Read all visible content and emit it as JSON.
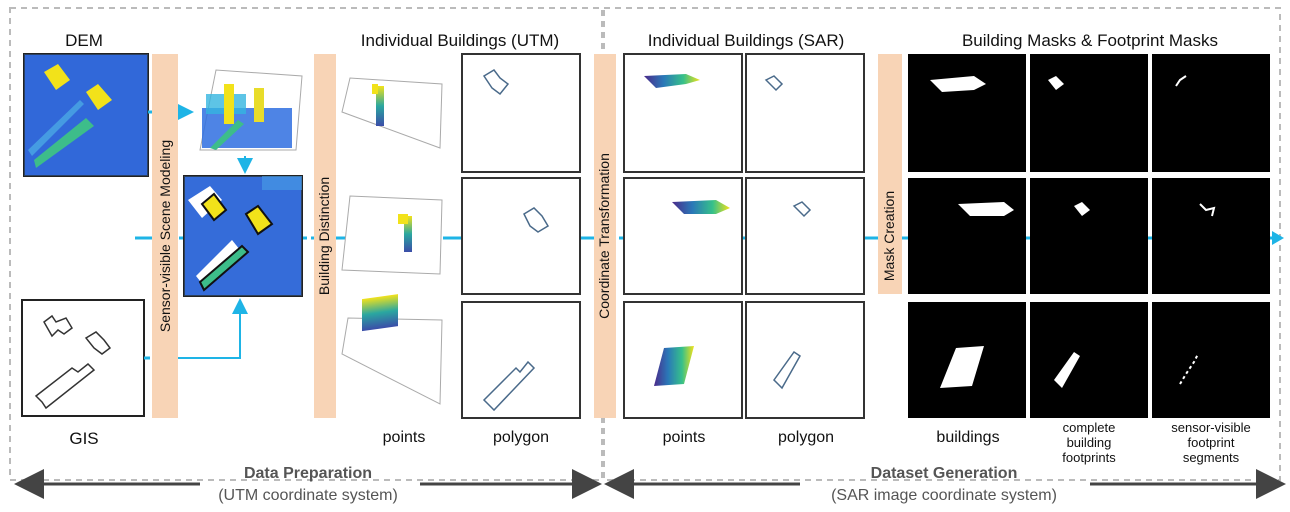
{
  "labels": {
    "dem": "DEM",
    "gis": "GIS",
    "scene_modeling": "Sensor-visible Scene Modeling",
    "building_distinction": "Building Distinction",
    "coordinate_transformation": "Coordinate Transformation",
    "mask_creation": "Mask Creation",
    "individual_utm": "Individual Buildings (UTM)",
    "individual_sar": "Individual Buildings (SAR)",
    "masks_title": "Building Masks  &  Footprint Masks",
    "points_utm": "points",
    "polygon_utm": "polygon",
    "points_sar": "points",
    "polygon_sar": "polygon",
    "buildings": "buildings",
    "complete_1": "complete",
    "complete_2": "building",
    "complete_3": "footprints",
    "visible_1": "sensor-visible",
    "visible_2": "footprint",
    "visible_3": "segments",
    "data_prep": "Data Preparation",
    "data_prep_sub": "(UTM coordinate system)",
    "dataset_gen": "Dataset Generation",
    "dataset_gen_sub": "(SAR image coordinate system)"
  },
  "colors": {
    "band": "#f8d4b6",
    "arrow": "#1eb4e6",
    "dem_bg": "#2d5fd6",
    "yellow": "#f2e21a",
    "green": "#3dbd8a",
    "poly": "#4a6a8a"
  }
}
